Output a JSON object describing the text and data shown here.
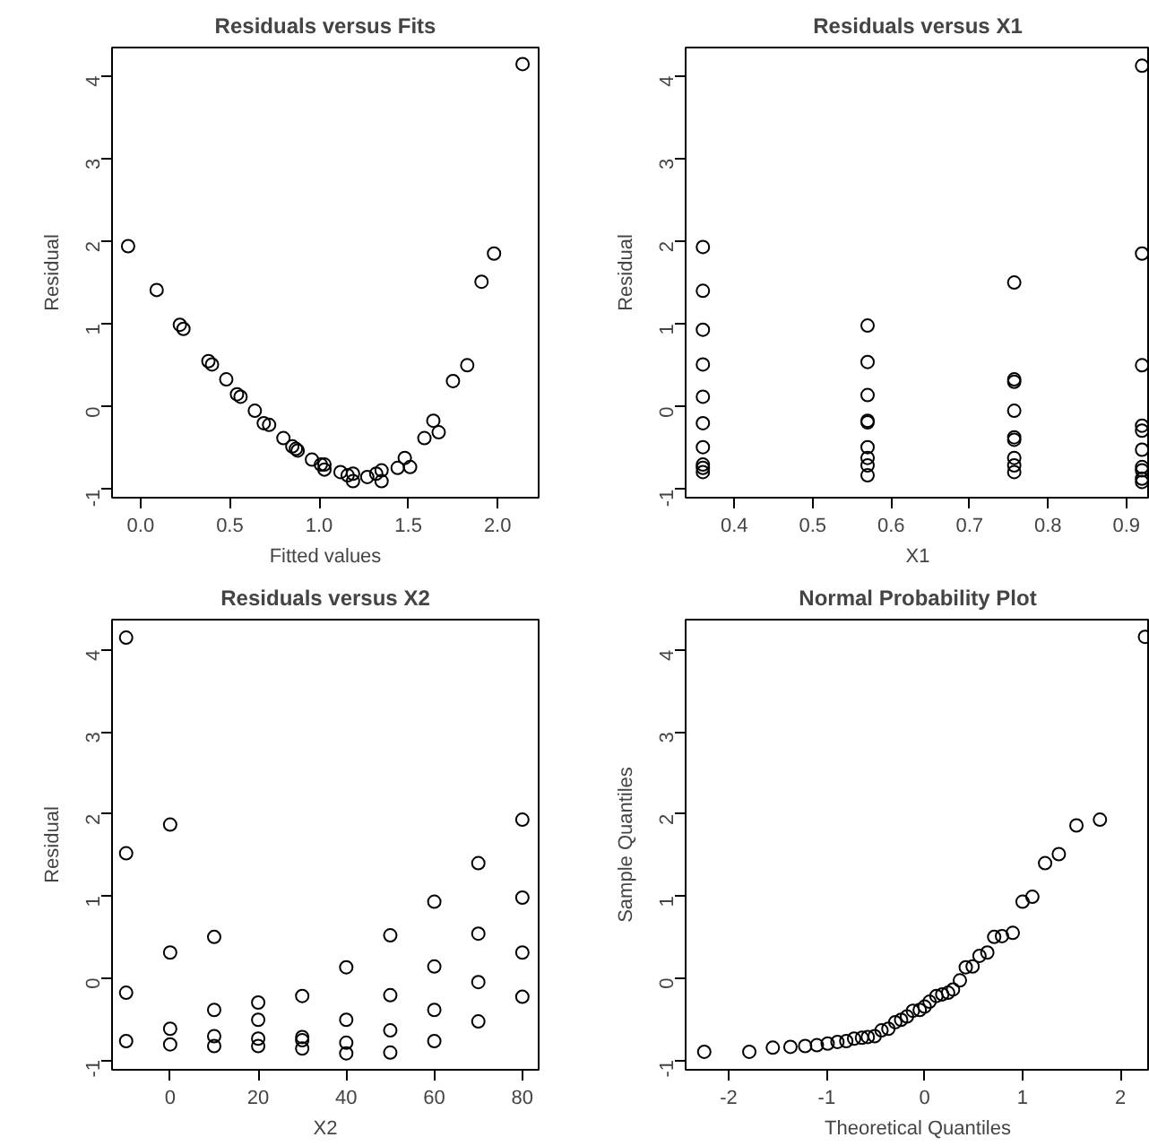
{
  "chart_data": [
    {
      "type": "scatter",
      "title": "Residuals versus Fits",
      "xlabel": "Fitted values",
      "ylabel": "Residual",
      "marker": "circle",
      "grid": false,
      "xlim": [
        -0.16,
        2.23
      ],
      "ylim": [
        -1.1,
        4.34
      ],
      "xticks": [
        {
          "value": 0,
          "label": "0.0"
        },
        0.5,
        {
          "value": 1,
          "label": "1.0"
        },
        1.5,
        {
          "value": 2,
          "label": "2.0"
        }
      ],
      "yticks": [
        -1,
        0,
        1,
        2,
        3,
        4
      ],
      "series": [
        {
          "color": "#000000",
          "x": [
            -0.07,
            0.09,
            0.22,
            0.24,
            0.38,
            0.4,
            0.48,
            0.54,
            0.56,
            0.64,
            0.69,
            0.72,
            0.8,
            0.85,
            0.87,
            0.88,
            0.96,
            1.01,
            1.03,
            1.03,
            1.12,
            1.16,
            1.19,
            1.19,
            1.27,
            1.32,
            1.35,
            1.35,
            1.44,
            1.48,
            1.51,
            1.59,
            1.64,
            1.67,
            1.75,
            1.83,
            1.91,
            1.98,
            2.14
          ],
          "values": [
            1.94,
            1.41,
            0.99,
            0.94,
            0.55,
            0.51,
            0.33,
            0.15,
            0.12,
            -0.05,
            -0.2,
            -0.22,
            -0.38,
            -0.48,
            -0.51,
            -0.53,
            -0.64,
            -0.7,
            -0.7,
            -0.76,
            -0.79,
            -0.83,
            -0.81,
            -0.9,
            -0.85,
            -0.81,
            -0.77,
            -0.9,
            -0.74,
            -0.62,
            -0.73,
            -0.38,
            -0.17,
            -0.31,
            0.31,
            0.5,
            1.51,
            1.85,
            4.14
          ]
        }
      ]
    },
    {
      "type": "scatter",
      "title": "Residuals versus X1",
      "xlabel": "X1",
      "ylabel": "Residual",
      "marker": "circle",
      "grid": false,
      "xlim": [
        0.338,
        0.93
      ],
      "ylim": [
        -1.1,
        4.34
      ],
      "xticks": [
        0.4,
        0.5,
        0.6,
        0.7,
        0.8,
        0.9
      ],
      "yticks": [
        -1,
        0,
        1,
        2,
        3,
        4
      ],
      "series": [
        {
          "color": "#000000",
          "x": [
            0.36,
            0.36,
            0.36,
            0.36,
            0.36,
            0.36,
            0.36,
            0.36,
            0.36,
            0.36,
            0.57,
            0.57,
            0.57,
            0.57,
            0.57,
            0.57,
            0.57,
            0.57,
            0.57,
            0.757,
            0.757,
            0.757,
            0.757,
            0.757,
            0.757,
            0.757,
            0.757,
            0.757,
            0.92,
            0.92,
            0.92,
            0.92,
            0.92,
            0.92,
            0.92,
            0.92,
            0.92,
            0.92
          ],
          "values": [
            1.93,
            1.4,
            0.93,
            0.51,
            0.12,
            -0.2,
            -0.49,
            -0.7,
            -0.74,
            -0.79,
            0.98,
            0.54,
            0.14,
            -0.17,
            -0.19,
            -0.49,
            -0.62,
            -0.71,
            -0.83,
            1.5,
            0.33,
            0.3,
            -0.05,
            -0.37,
            -0.4,
            -0.62,
            -0.71,
            -0.79,
            4.12,
            1.85,
            0.5,
            -0.23,
            -0.29,
            -0.52,
            -0.73,
            -0.77,
            -0.87,
            -0.91
          ]
        }
      ]
    },
    {
      "type": "scatter",
      "title": "Residuals versus X2",
      "xlabel": "X2",
      "ylabel": "Residual",
      "marker": "circle",
      "grid": false,
      "xlim": [
        -13.2,
        83.7
      ],
      "ylim": [
        -1.12,
        4.37
      ],
      "xticks": [
        0,
        20,
        40,
        60,
        80
      ],
      "yticks": [
        -1,
        0,
        1,
        2,
        3,
        4
      ],
      "series": [
        {
          "color": "#000000",
          "x": [
            -10,
            -10,
            -10,
            -10,
            0,
            0,
            0,
            0,
            10,
            10,
            10,
            10,
            20,
            20,
            20,
            20,
            30,
            30,
            30,
            30,
            40,
            40,
            40,
            40,
            50,
            50,
            50,
            50,
            60,
            60,
            60,
            60,
            70,
            70,
            70,
            70,
            80,
            80,
            80,
            80
          ],
          "values": [
            4.15,
            1.52,
            -0.18,
            -0.77,
            1.87,
            0.31,
            -0.62,
            -0.81,
            0.5,
            -0.39,
            -0.71,
            -0.83,
            -0.3,
            -0.51,
            -0.74,
            -0.83,
            -0.22,
            -0.72,
            -0.76,
            -0.86,
            0.13,
            -0.51,
            -0.79,
            -0.92,
            0.52,
            -0.21,
            -0.64,
            -0.91,
            0.93,
            0.14,
            -0.39,
            -0.77,
            1.4,
            0.54,
            -0.05,
            -0.53,
            1.93,
            0.98,
            0.31,
            -0.23
          ]
        }
      ]
    },
    {
      "type": "scatter",
      "title": "Normal Probability Plot",
      "xlabel": "Theoretical Quantiles",
      "ylabel": "Sample Quantiles",
      "marker": "circle",
      "grid": false,
      "xlim": [
        -2.44,
        2.3
      ],
      "ylim": [
        -1.12,
        4.37
      ],
      "xticks": [
        -2,
        -1,
        0,
        1,
        2
      ],
      "yticks": [
        -1,
        0,
        1,
        2,
        3,
        4
      ],
      "series": [
        {
          "color": "#000000",
          "x": [
            -2.25,
            -1.79,
            -1.55,
            -1.37,
            -1.22,
            -1.1,
            -0.99,
            -0.89,
            -0.8,
            -0.72,
            -0.64,
            -0.58,
            -0.51,
            -0.44,
            -0.37,
            -0.3,
            -0.24,
            -0.18,
            -0.12,
            -0.05,
            0.0,
            0.05,
            0.12,
            0.18,
            0.24,
            0.29,
            0.36,
            0.42,
            0.49,
            0.56,
            0.64,
            0.71,
            0.79,
            0.9,
            1.0,
            1.1,
            1.23,
            1.37,
            1.55,
            1.79,
            2.25
          ],
          "values": [
            -0.9,
            -0.9,
            -0.85,
            -0.84,
            -0.83,
            -0.82,
            -0.8,
            -0.78,
            -0.77,
            -0.74,
            -0.73,
            -0.72,
            -0.71,
            -0.64,
            -0.62,
            -0.54,
            -0.51,
            -0.47,
            -0.4,
            -0.39,
            -0.35,
            -0.29,
            -0.22,
            -0.2,
            -0.18,
            -0.14,
            -0.03,
            0.13,
            0.14,
            0.27,
            0.31,
            0.5,
            0.51,
            0.55,
            0.93,
            0.99,
            1.4,
            1.51,
            1.86,
            1.93,
            4.16
          ]
        }
      ]
    }
  ]
}
